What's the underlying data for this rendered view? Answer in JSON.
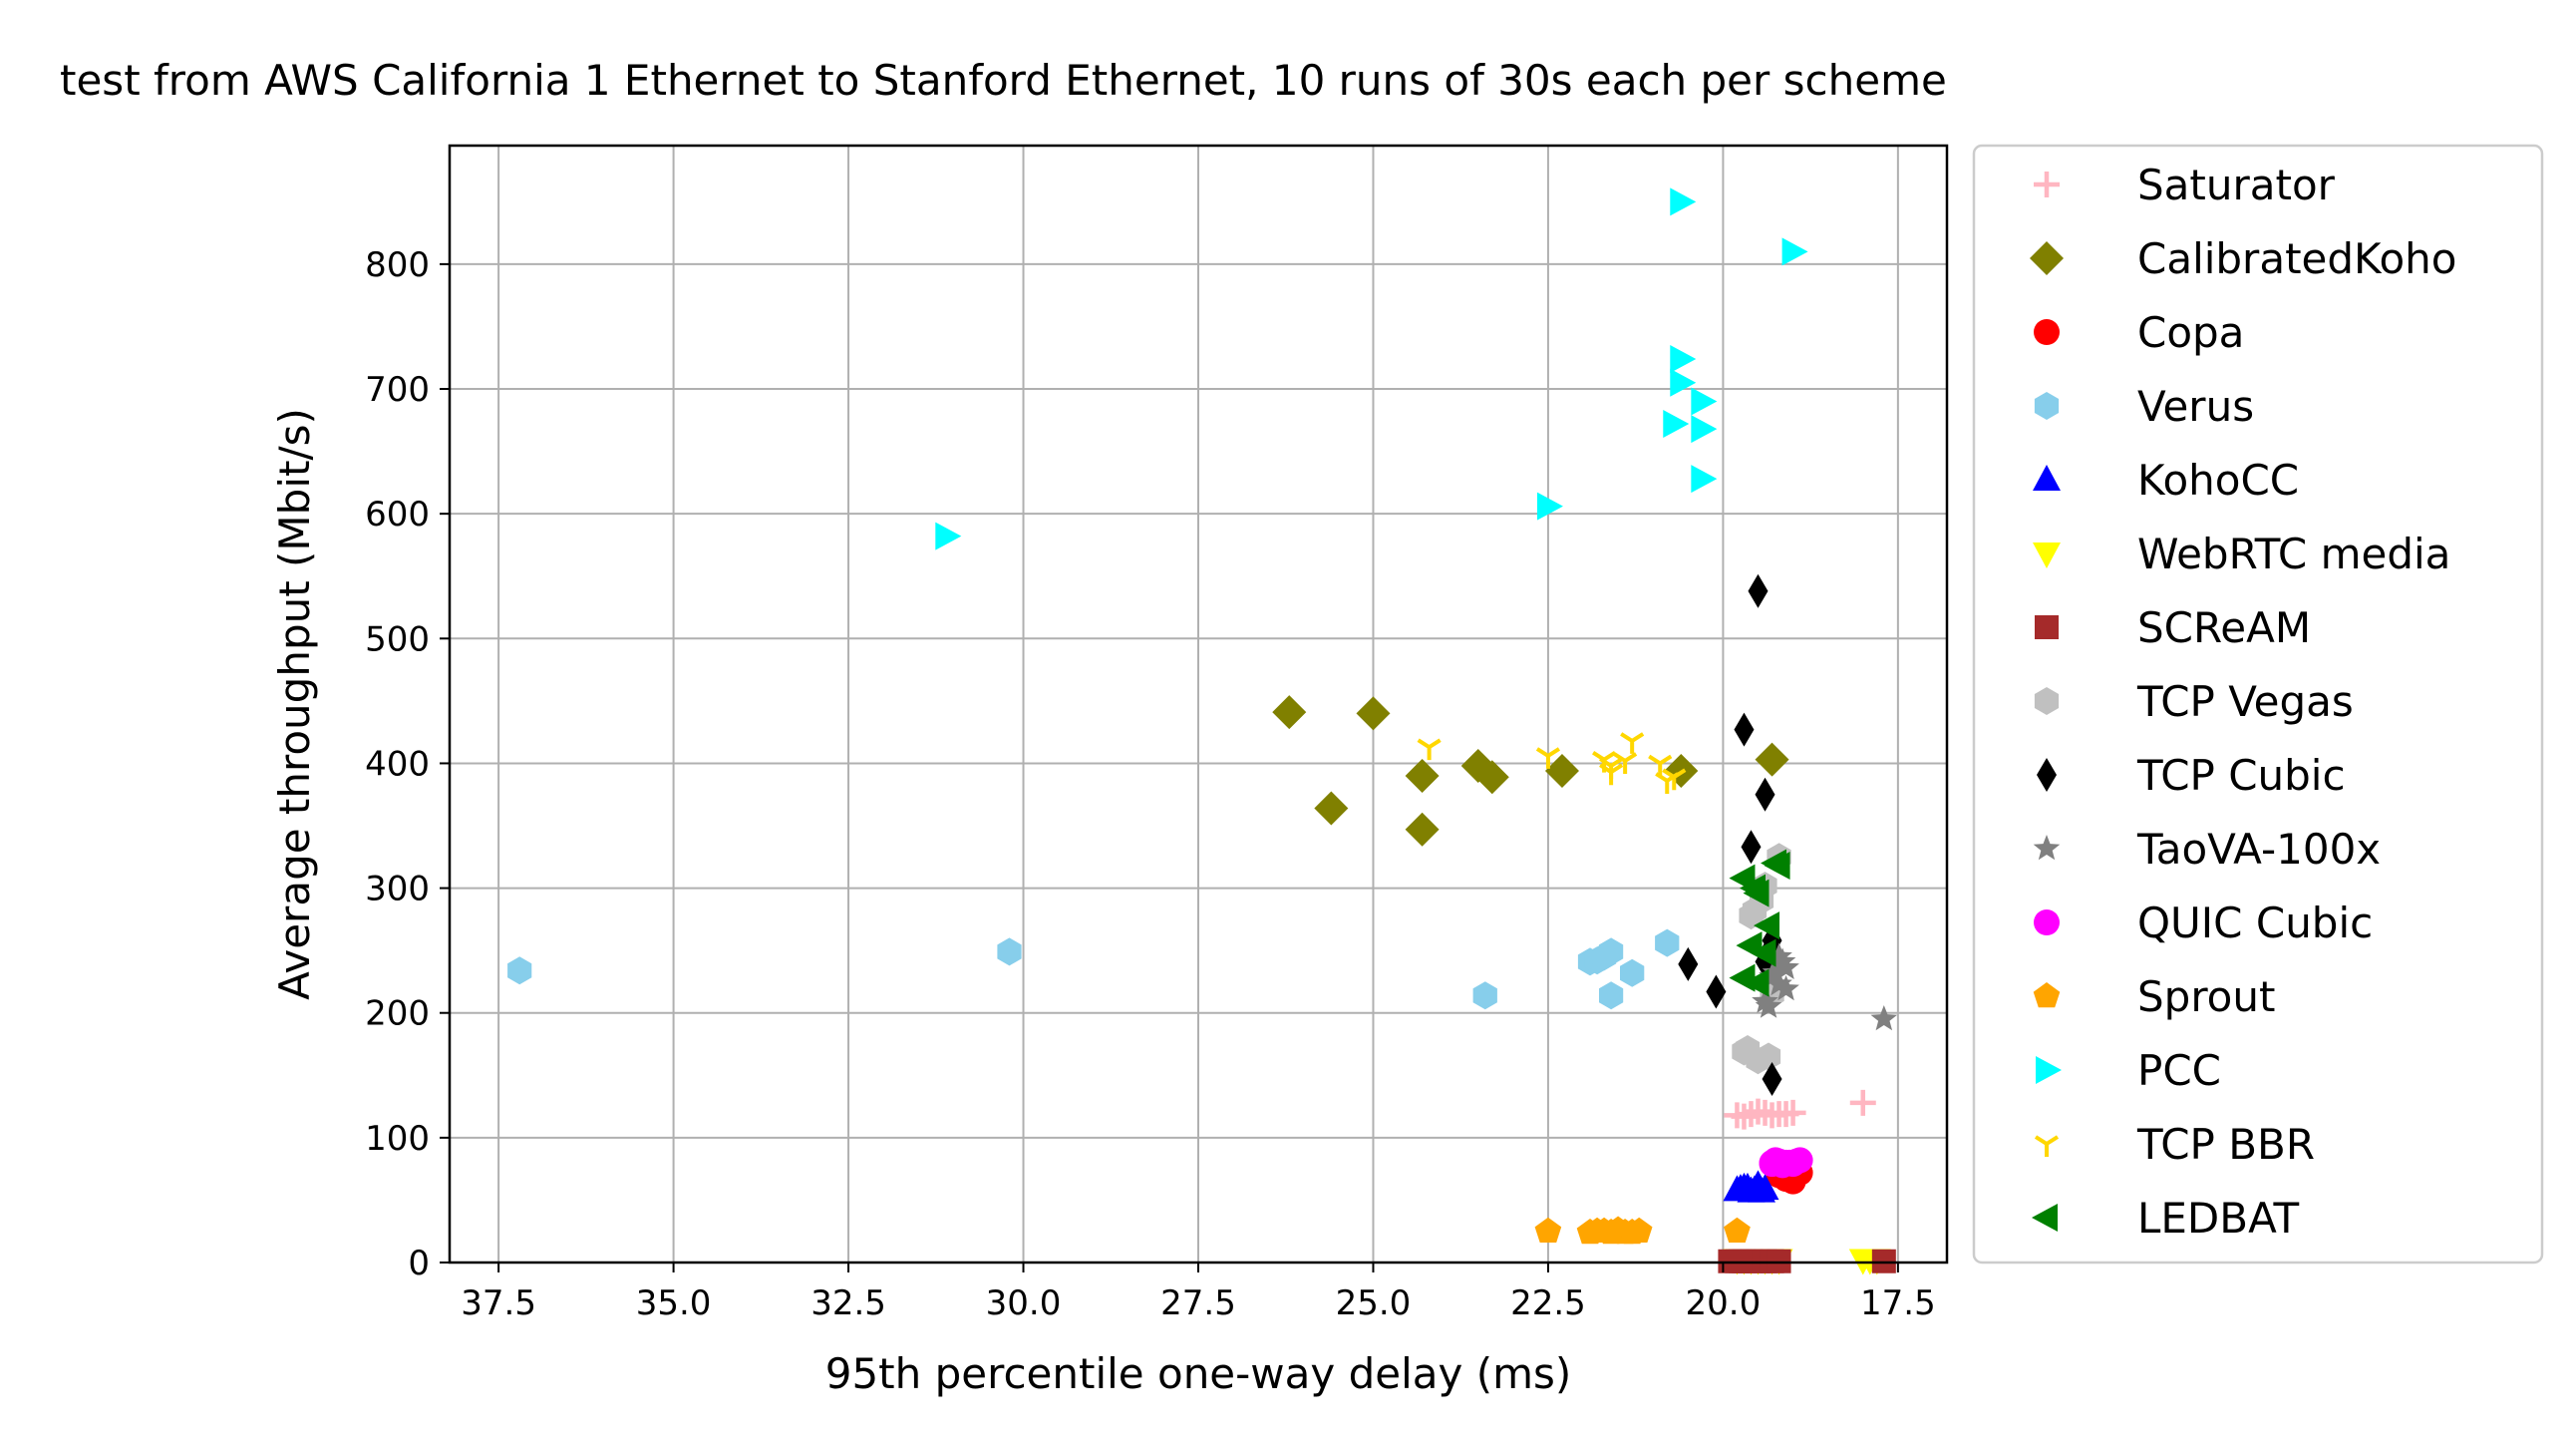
{
  "chart_data": {
    "type": "scatter",
    "title": "test from AWS California 1 Ethernet to Stanford Ethernet, 10 runs of 30s each per scheme",
    "xlabel": "95th percentile one-way delay (ms)",
    "ylabel": "Average throughput (Mbit/s)",
    "xlim": [
      38.2,
      16.8
    ],
    "ylim": [
      0,
      895
    ],
    "x_inverted": true,
    "grid": true,
    "legend_position": "outside-right",
    "xticks": [
      37.5,
      35.0,
      32.5,
      30.0,
      27.5,
      25.0,
      22.5,
      20.0,
      17.5
    ],
    "xtick_labels": [
      "37.5",
      "35.0",
      "32.5",
      "30.0",
      "27.5",
      "25.0",
      "22.5",
      "20.0",
      "17.5"
    ],
    "yticks": [
      0,
      100,
      200,
      300,
      400,
      500,
      600,
      700,
      800
    ],
    "ytick_labels": [
      "0",
      "100",
      "200",
      "300",
      "400",
      "500",
      "600",
      "700",
      "800"
    ],
    "series": [
      {
        "name": "Saturator",
        "color": "#ffb6c1",
        "marker": "plus",
        "points": [
          [
            19.8,
            118
          ],
          [
            19.4,
            120
          ],
          [
            19.6,
            119
          ],
          [
            19.2,
            119
          ],
          [
            19.0,
            120
          ],
          [
            19.3,
            118
          ],
          [
            19.5,
            121
          ],
          [
            19.1,
            119
          ],
          [
            18.0,
            128
          ],
          [
            19.7,
            117
          ]
        ]
      },
      {
        "name": "CalibratedKoho",
        "color": "#808000",
        "marker": "diamond",
        "points": [
          [
            26.2,
            441
          ],
          [
            25.0,
            440
          ],
          [
            25.6,
            364
          ],
          [
            24.3,
            390
          ],
          [
            24.3,
            347
          ],
          [
            23.5,
            398
          ],
          [
            23.3,
            389
          ],
          [
            22.3,
            394
          ],
          [
            20.6,
            394
          ],
          [
            19.3,
            403
          ]
        ]
      },
      {
        "name": "Copa",
        "color": "#ff0000",
        "marker": "circle",
        "points": [
          [
            19.0,
            66
          ],
          [
            19.1,
            69
          ],
          [
            18.9,
            72
          ],
          [
            19.2,
            70
          ],
          [
            19.0,
            74
          ],
          [
            19.1,
            67
          ],
          [
            18.95,
            71
          ],
          [
            19.05,
            68
          ],
          [
            19.15,
            73
          ],
          [
            19.0,
            65
          ]
        ]
      },
      {
        "name": "Verus",
        "color": "#87ceeb",
        "marker": "hexagon",
        "points": [
          [
            37.2,
            234
          ],
          [
            30.2,
            249
          ],
          [
            23.4,
            214
          ],
          [
            21.9,
            241
          ],
          [
            21.8,
            242
          ],
          [
            21.6,
            249
          ],
          [
            21.6,
            214
          ],
          [
            21.3,
            232
          ],
          [
            20.8,
            256
          ],
          [
            21.7,
            245
          ]
        ]
      },
      {
        "name": "KohoCC",
        "color": "#0000ff",
        "marker": "triangle-up",
        "points": [
          [
            19.8,
            58
          ],
          [
            19.7,
            60
          ],
          [
            19.6,
            57
          ],
          [
            19.5,
            61
          ],
          [
            19.4,
            59
          ],
          [
            19.55,
            58
          ],
          [
            19.65,
            60
          ],
          [
            19.45,
            57
          ],
          [
            19.75,
            59
          ],
          [
            19.5,
            62
          ]
        ]
      },
      {
        "name": "WebRTC media",
        "color": "#ffff00",
        "marker": "triangle-down",
        "points": [
          [
            19.8,
            2
          ],
          [
            19.6,
            2
          ],
          [
            19.4,
            2
          ],
          [
            19.2,
            2
          ],
          [
            18.0,
            2
          ],
          [
            17.8,
            2
          ],
          [
            19.5,
            2
          ],
          [
            19.7,
            2
          ],
          [
            19.3,
            2
          ],
          [
            17.9,
            2
          ]
        ]
      },
      {
        "name": "SCReAM",
        "color": "#a52a2a",
        "marker": "square",
        "points": [
          [
            19.9,
            1
          ],
          [
            19.8,
            1
          ],
          [
            19.7,
            1
          ],
          [
            19.6,
            1
          ],
          [
            19.5,
            1
          ],
          [
            19.4,
            1
          ],
          [
            19.3,
            1
          ],
          [
            19.2,
            1
          ],
          [
            17.7,
            1
          ],
          [
            19.75,
            1
          ]
        ]
      },
      {
        "name": "TCP Vegas",
        "color": "#c0c0c0",
        "marker": "hexagon",
        "points": [
          [
            19.7,
            169
          ],
          [
            19.5,
            162
          ],
          [
            19.6,
            278
          ],
          [
            19.4,
            302
          ],
          [
            19.2,
            325
          ],
          [
            19.3,
            215
          ],
          [
            19.55,
            282
          ],
          [
            19.35,
            165
          ],
          [
            19.65,
            171
          ],
          [
            19.45,
            290
          ]
        ]
      },
      {
        "name": "TCP Cubic",
        "color": "#000000",
        "marker": "thin-diamond",
        "points": [
          [
            19.5,
            538
          ],
          [
            19.7,
            427
          ],
          [
            19.4,
            375
          ],
          [
            19.6,
            333
          ],
          [
            19.3,
            258
          ],
          [
            19.4,
            241
          ],
          [
            20.5,
            239
          ],
          [
            20.1,
            217
          ],
          [
            19.3,
            147
          ],
          [
            19.35,
            248
          ]
        ]
      },
      {
        "name": "TaoVA-100x",
        "color": "#808080",
        "marker": "star",
        "points": [
          [
            19.2,
            245
          ],
          [
            19.1,
            236
          ],
          [
            19.3,
            229
          ],
          [
            19.2,
            223
          ],
          [
            19.1,
            219
          ],
          [
            19.4,
            209
          ],
          [
            19.35,
            205
          ],
          [
            17.7,
            195
          ],
          [
            19.25,
            232
          ],
          [
            19.15,
            241
          ]
        ]
      },
      {
        "name": "QUIC Cubic",
        "color": "#ff00ff",
        "marker": "circle",
        "points": [
          [
            19.3,
            80
          ],
          [
            19.2,
            81
          ],
          [
            19.1,
            80
          ],
          [
            18.9,
            82
          ],
          [
            19.0,
            79
          ],
          [
            19.25,
            82
          ],
          [
            19.15,
            78
          ],
          [
            18.95,
            81
          ],
          [
            19.05,
            80
          ],
          [
            19.3,
            79
          ]
        ]
      },
      {
        "name": "Sprout",
        "color": "#ffa500",
        "marker": "pentagon",
        "points": [
          [
            22.5,
            25
          ],
          [
            21.9,
            24
          ],
          [
            21.7,
            25
          ],
          [
            21.5,
            26
          ],
          [
            21.4,
            24
          ],
          [
            21.6,
            24
          ],
          [
            21.2,
            25
          ],
          [
            19.8,
            25
          ],
          [
            21.8,
            25
          ],
          [
            21.3,
            24
          ]
        ]
      },
      {
        "name": "PCC",
        "color": "#00ffff",
        "marker": "triangle-right",
        "points": [
          [
            31.1,
            582
          ],
          [
            22.5,
            606
          ],
          [
            20.6,
            850
          ],
          [
            19.0,
            810
          ],
          [
            20.6,
            724
          ],
          [
            20.6,
            705
          ],
          [
            20.3,
            690
          ],
          [
            20.7,
            672
          ],
          [
            20.3,
            668
          ],
          [
            20.3,
            628
          ]
        ]
      },
      {
        "name": "TCP BBR",
        "color": "#ffd700",
        "marker": "tri-down",
        "points": [
          [
            24.2,
            413
          ],
          [
            22.5,
            406
          ],
          [
            21.7,
            403
          ],
          [
            21.6,
            398
          ],
          [
            21.3,
            418
          ],
          [
            21.4,
            402
          ],
          [
            20.9,
            400
          ],
          [
            20.8,
            386
          ],
          [
            20.7,
            389
          ],
          [
            21.6,
            393
          ]
        ]
      },
      {
        "name": "LEDBAT",
        "color": "#008000",
        "marker": "triangle-left",
        "points": [
          [
            19.2,
            318
          ],
          [
            19.7,
            308
          ],
          [
            19.5,
            296
          ],
          [
            19.35,
            270
          ],
          [
            19.6,
            254
          ],
          [
            19.4,
            248
          ],
          [
            19.7,
            228
          ],
          [
            19.5,
            224
          ],
          [
            19.25,
            320
          ],
          [
            19.55,
            300
          ]
        ]
      }
    ]
  }
}
